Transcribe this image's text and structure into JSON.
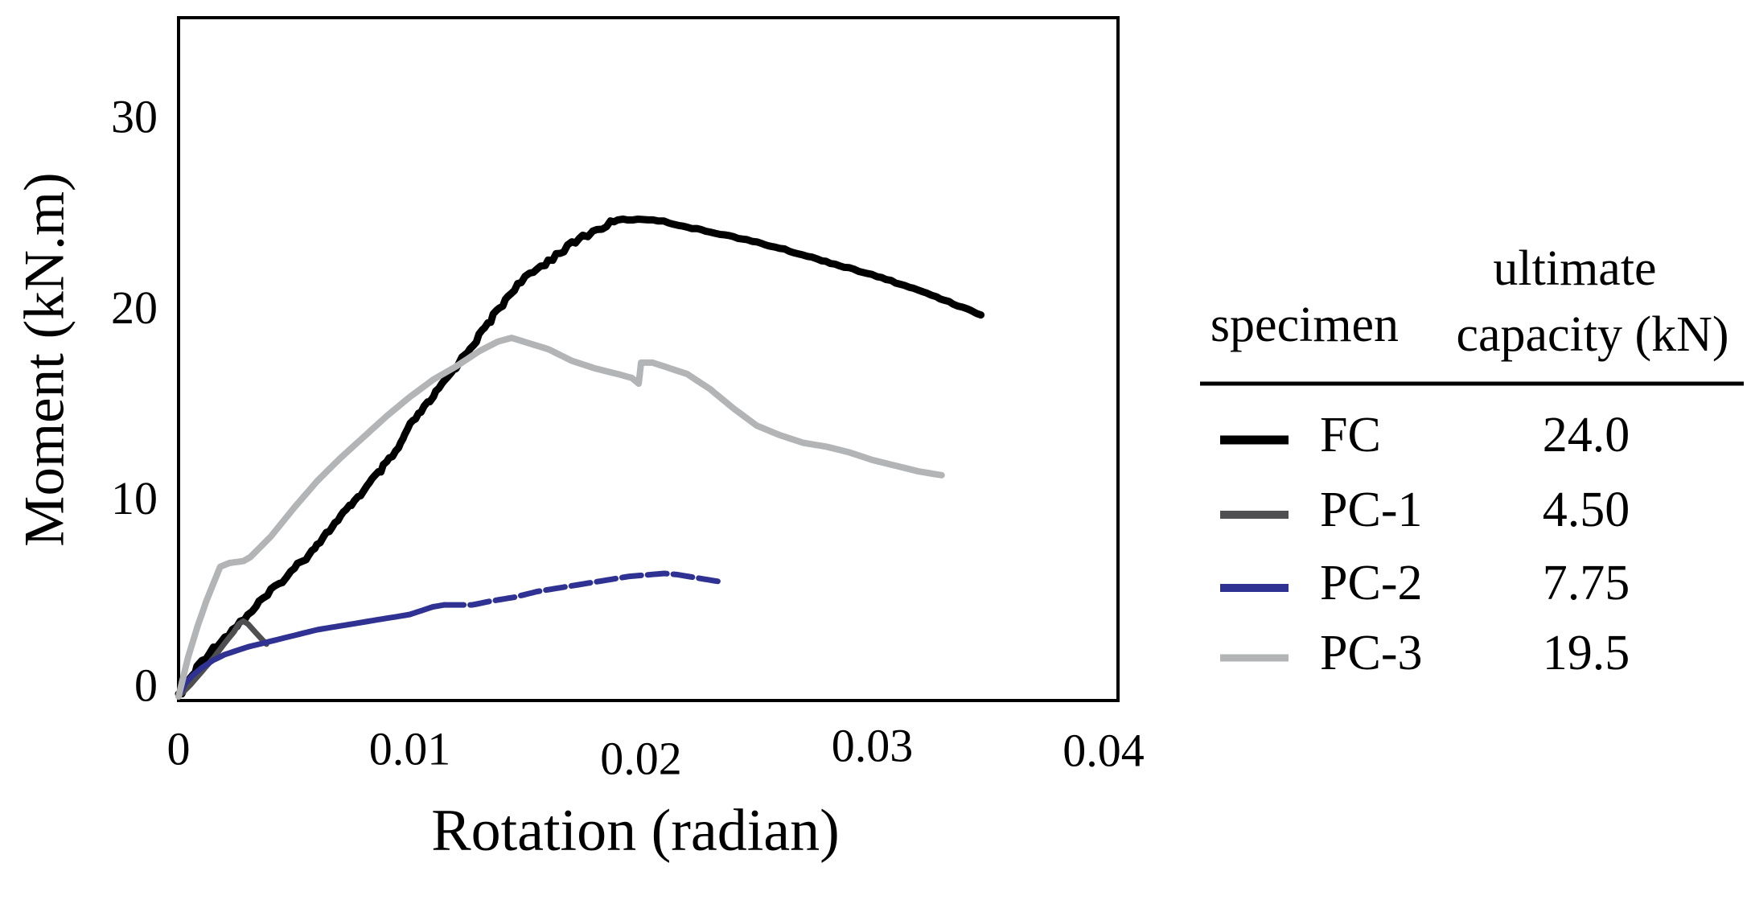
{
  "figure": {
    "background": "#ffffff",
    "description": "Moment-rotation curves for four specimens with legend table"
  },
  "chart_data": {
    "type": "line",
    "title": "",
    "xlabel": "Rotation (radian)",
    "ylabel": "Moment (kN.m)",
    "xlim": [
      0,
      0.0406
    ],
    "ylim": [
      0,
      35.6
    ],
    "grid": false,
    "axis_color": "#000000",
    "x_ticks": [
      {
        "label": "0",
        "value": 0,
        "dy": 0
      },
      {
        "label": "0.01",
        "value": 0.01,
        "dy": 0
      },
      {
        "label": "0.02",
        "value": 0.02,
        "dy": 12
      },
      {
        "label": "0.03",
        "value": 0.03,
        "dy": -4
      },
      {
        "label": "0.04",
        "value": 0.04,
        "dy": 2
      }
    ],
    "y_ticks": [
      {
        "label": "0",
        "value": 0
      },
      {
        "label": "10",
        "value": 10
      },
      {
        "label": "20",
        "value": 20
      },
      {
        "label": "30",
        "value": 30
      }
    ],
    "series": [
      {
        "name": "FC",
        "color": "#000000",
        "width": 9,
        "style": "solid",
        "jagged": true,
        "points": [
          [
            0,
            0
          ],
          [
            0.0003,
            0.5
          ],
          [
            0.0006,
            1.1
          ],
          [
            0.001,
            1.9
          ],
          [
            0.0015,
            2.5
          ],
          [
            0.002,
            3.1
          ],
          [
            0.0025,
            3.7
          ],
          [
            0.003,
            4.3
          ],
          [
            0.0035,
            4.9
          ],
          [
            0.004,
            5.5
          ],
          [
            0.0045,
            6.1
          ],
          [
            0.005,
            6.7
          ],
          [
            0.0055,
            7.3
          ],
          [
            0.006,
            8.0
          ],
          [
            0.0065,
            8.7
          ],
          [
            0.007,
            9.4
          ],
          [
            0.0075,
            10.1
          ],
          [
            0.008,
            10.8
          ],
          [
            0.0085,
            11.5
          ],
          [
            0.009,
            12.2
          ],
          [
            0.0095,
            13.0
          ],
          [
            0.01,
            14.2
          ],
          [
            0.011,
            15.7
          ],
          [
            0.012,
            17.3
          ],
          [
            0.013,
            18.9
          ],
          [
            0.0145,
            21.4
          ],
          [
            0.0155,
            22.4
          ],
          [
            0.0165,
            23.3
          ],
          [
            0.0175,
            24.1
          ],
          [
            0.0185,
            24.7
          ],
          [
            0.019,
            25.0
          ],
          [
            0.0205,
            25.0
          ],
          [
            0.021,
            24.9
          ],
          [
            0.022,
            24.6
          ],
          [
            0.024,
            24.1
          ],
          [
            0.026,
            23.5
          ],
          [
            0.028,
            22.8
          ],
          [
            0.03,
            22.1
          ],
          [
            0.032,
            21.3
          ],
          [
            0.0335,
            20.6
          ],
          [
            0.0347,
            20.0
          ]
        ]
      },
      {
        "name": "PC-1",
        "color": "#4f4f51",
        "width": 7,
        "style": "solid",
        "jagged": false,
        "points": [
          [
            0,
            0
          ],
          [
            0.0005,
            0.6
          ],
          [
            0.001,
            1.3
          ],
          [
            0.0015,
            2.0
          ],
          [
            0.002,
            2.8
          ],
          [
            0.0024,
            3.4
          ],
          [
            0.0026,
            3.8
          ],
          [
            0.0028,
            3.95
          ],
          [
            0.003,
            3.8
          ],
          [
            0.0033,
            3.4
          ],
          [
            0.0036,
            3.0
          ],
          [
            0.0038,
            2.75
          ]
        ]
      },
      {
        "name": "PC-2",
        "color": "#2f3292",
        "width": 7,
        "style": "solid_then_dashed",
        "dash_from": 0.0115,
        "dash": "24 8",
        "jagged": false,
        "points": [
          [
            0,
            0
          ],
          [
            0.0003,
            0.7
          ],
          [
            0.0006,
            1.1
          ],
          [
            0.001,
            1.5
          ],
          [
            0.0015,
            1.9
          ],
          [
            0.002,
            2.2
          ],
          [
            0.003,
            2.6
          ],
          [
            0.004,
            2.9
          ],
          [
            0.005,
            3.2
          ],
          [
            0.006,
            3.5
          ],
          [
            0.007,
            3.7
          ],
          [
            0.008,
            3.9
          ],
          [
            0.009,
            4.1
          ],
          [
            0.01,
            4.3
          ],
          [
            0.0105,
            4.5
          ],
          [
            0.011,
            4.7
          ],
          [
            0.0115,
            4.8
          ],
          [
            0.0127,
            4.8
          ],
          [
            0.0135,
            5.0
          ],
          [
            0.0145,
            5.2
          ],
          [
            0.0155,
            5.5
          ],
          [
            0.0165,
            5.7
          ],
          [
            0.0175,
            5.9
          ],
          [
            0.0185,
            6.1
          ],
          [
            0.0195,
            6.3
          ],
          [
            0.0205,
            6.4
          ],
          [
            0.021,
            6.45
          ],
          [
            0.0215,
            6.4
          ],
          [
            0.0225,
            6.2
          ],
          [
            0.0235,
            6.0
          ]
        ]
      },
      {
        "name": "PC-3",
        "color": "#b2b4b6",
        "width": 8,
        "style": "solid",
        "jagged": false,
        "points": [
          [
            0,
            0
          ],
          [
            0.0004,
            2.0
          ],
          [
            0.0008,
            3.6
          ],
          [
            0.0012,
            5.0
          ],
          [
            0.0016,
            6.2
          ],
          [
            0.0018,
            6.8
          ],
          [
            0.0022,
            7.0
          ],
          [
            0.0028,
            7.1
          ],
          [
            0.0031,
            7.3
          ],
          [
            0.004,
            8.4
          ],
          [
            0.005,
            9.9
          ],
          [
            0.006,
            11.3
          ],
          [
            0.007,
            12.5
          ],
          [
            0.008,
            13.6
          ],
          [
            0.009,
            14.7
          ],
          [
            0.01,
            15.7
          ],
          [
            0.011,
            16.6
          ],
          [
            0.012,
            17.3
          ],
          [
            0.013,
            18.1
          ],
          [
            0.0138,
            18.6
          ],
          [
            0.0144,
            18.8
          ],
          [
            0.0152,
            18.5
          ],
          [
            0.016,
            18.2
          ],
          [
            0.017,
            17.6
          ],
          [
            0.018,
            17.2
          ],
          [
            0.019,
            16.9
          ],
          [
            0.0196,
            16.7
          ],
          [
            0.0199,
            16.4
          ],
          [
            0.02,
            17.5
          ],
          [
            0.0205,
            17.5
          ],
          [
            0.021,
            17.3
          ],
          [
            0.022,
            16.9
          ],
          [
            0.023,
            16.1
          ],
          [
            0.024,
            15.1
          ],
          [
            0.025,
            14.2
          ],
          [
            0.026,
            13.7
          ],
          [
            0.027,
            13.3
          ],
          [
            0.028,
            13.1
          ],
          [
            0.029,
            12.8
          ],
          [
            0.03,
            12.4
          ],
          [
            0.031,
            12.1
          ],
          [
            0.032,
            11.8
          ],
          [
            0.033,
            11.6
          ]
        ]
      }
    ],
    "legend_position": "right",
    "legend_table": {
      "col1_header": "specimen",
      "col2_header_line1": "ultimate",
      "col2_header_line2": "capacity (kN)",
      "rows": [
        {
          "name": "FC",
          "value": "24.0",
          "color": "#000000",
          "swatch_width": 11
        },
        {
          "name": "PC-1",
          "value": "4.50",
          "color": "#4f4f51",
          "swatch_width": 10
        },
        {
          "name": "PC-2",
          "value": "7.75",
          "color": "#2f3292",
          "swatch_width": 10
        },
        {
          "name": "PC-3",
          "value": "19.5",
          "color": "#b2b4b6",
          "swatch_width": 9
        }
      ]
    }
  }
}
